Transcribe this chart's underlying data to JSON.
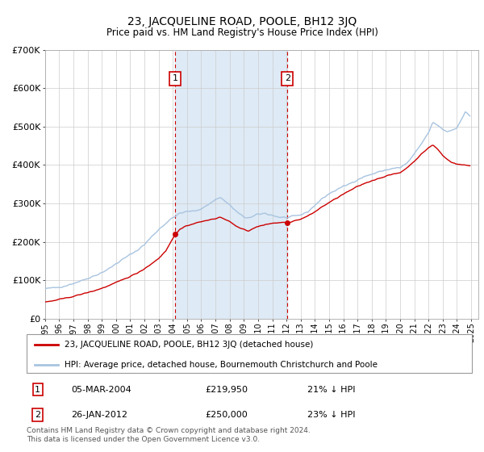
{
  "title": "23, JACQUELINE ROAD, POOLE, BH12 3JQ",
  "subtitle": "Price paid vs. HM Land Registry's House Price Index (HPI)",
  "legend_line1": "23, JACQUELINE ROAD, POOLE, BH12 3JQ (detached house)",
  "legend_line2": "HPI: Average price, detached house, Bournemouth Christchurch and Poole",
  "footer": "Contains HM Land Registry data © Crown copyright and database right 2024.\nThis data is licensed under the Open Government Licence v3.0.",
  "purchase1_date": "05-MAR-2004",
  "purchase1_price": 219950,
  "purchase1_label": "21% ↓ HPI",
  "purchase2_date": "26-JAN-2012",
  "purchase2_price": 250000,
  "purchase2_label": "23% ↓ HPI",
  "ylim": [
    0,
    700000
  ],
  "yticks": [
    0,
    100000,
    200000,
    300000,
    400000,
    500000,
    600000,
    700000
  ],
  "ytick_labels": [
    "£0",
    "£100K",
    "£200K",
    "£300K",
    "£400K",
    "£500K",
    "£600K",
    "£700K"
  ],
  "hpi_color": "#a8c4e0",
  "price_color": "#cc0000",
  "shade_color": "#deeaf5",
  "box_color": "#cc0000",
  "purchase1_x": 2004.17,
  "purchase2_x": 2012.07,
  "xlim_left": 1995.0,
  "xlim_right": 2025.5
}
